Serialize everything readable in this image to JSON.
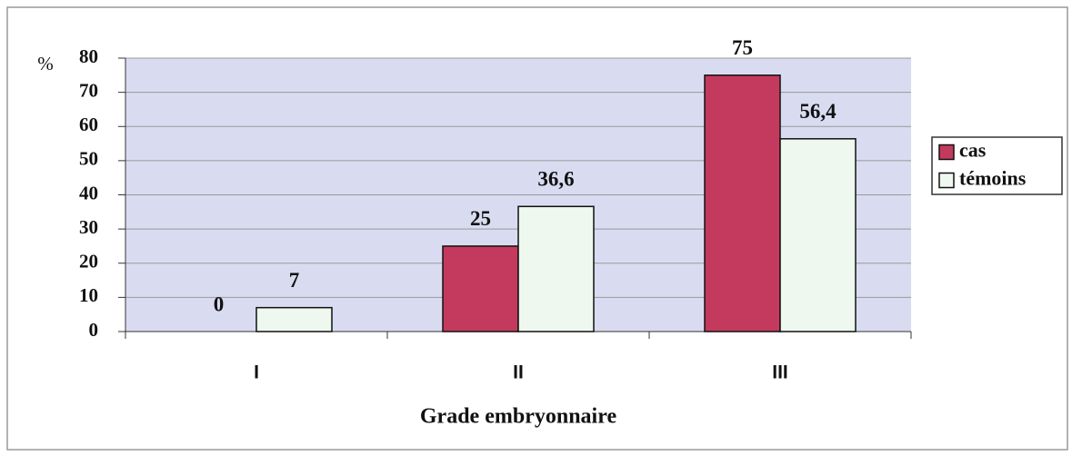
{
  "chart_data": {
    "type": "bar",
    "y_label": "%",
    "x_label": "Grade embryonnaire",
    "categories": [
      "I",
      "II",
      "III"
    ],
    "series": [
      {
        "name": "cas",
        "color": "#c43a5e",
        "values": [
          0,
          25,
          75
        ]
      },
      {
        "name": "témoins",
        "color": "#eef8ee",
        "values": [
          7,
          36.6,
          56.4
        ],
        "value_labels": [
          "7",
          "36,6",
          "56,4"
        ]
      }
    ],
    "ylim": [
      0,
      80
    ],
    "yticks": [
      0,
      10,
      20,
      30,
      40,
      50,
      60,
      70,
      80
    ],
    "grid": true,
    "legend": "right"
  }
}
